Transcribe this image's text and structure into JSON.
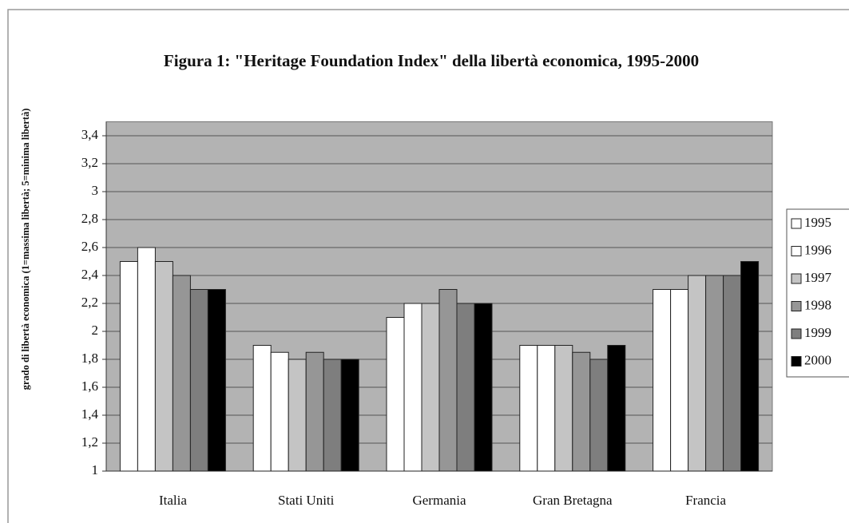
{
  "chart_data": {
    "type": "bar",
    "title": "Figura 1: \"Heritage Foundation Index\" della libertà economica, 1995-2000",
    "y_label": "grado di libertà economica (1=massima libertà; 5=minima libertà)",
    "categories": [
      "Italia",
      "Stati Uniti",
      "Germania",
      "Gran Bretagna",
      "Francia"
    ],
    "series": [
      {
        "name": "1995",
        "color": "#ffffff",
        "values": [
          2.5,
          1.9,
          2.1,
          1.9,
          2.3
        ]
      },
      {
        "name": "1996",
        "color": "#ffffff",
        "values": [
          2.6,
          1.85,
          2.2,
          1.9,
          2.3
        ]
      },
      {
        "name": "1997",
        "color": "#c4c4c4",
        "values": [
          2.5,
          1.8,
          2.2,
          1.9,
          2.4
        ]
      },
      {
        "name": "1998",
        "color": "#969696",
        "values": [
          2.4,
          1.85,
          2.3,
          1.85,
          2.4
        ]
      },
      {
        "name": "1999",
        "color": "#7e7e7e",
        "values": [
          2.3,
          1.8,
          2.2,
          1.8,
          2.4
        ]
      },
      {
        "name": "2000",
        "color": "#000000",
        "values": [
          2.3,
          1.8,
          2.2,
          1.9,
          2.5
        ]
      }
    ],
    "ylim": [
      1,
      3.5
    ],
    "yticks": [
      1,
      {
        "value": 1.2,
        "label": "1,2"
      },
      {
        "value": 1.4,
        "label": "1,4"
      },
      {
        "value": 1.6,
        "label": "1,6"
      },
      {
        "value": 1.8,
        "label": "1,8"
      },
      2,
      {
        "value": 2.2,
        "label": "2,2"
      },
      {
        "value": 2.4,
        "label": "2,4"
      },
      {
        "value": 2.6,
        "label": "2,6"
      },
      {
        "value": 2.8,
        "label": "2,8"
      },
      3,
      {
        "value": 3.2,
        "label": "3,2"
      },
      {
        "value": 3.4,
        "label": "3,4"
      }
    ],
    "grid": true,
    "legend": "right"
  }
}
